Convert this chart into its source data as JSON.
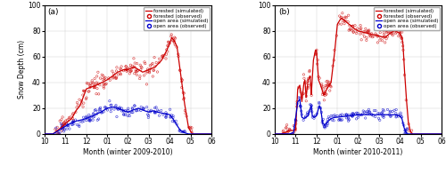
{
  "panel_a": {
    "title": "(a)",
    "xlabel": "Month (winter 2009-2010)",
    "ylabel": "Snow Depth (cm)",
    "xlim": [
      10,
      18
    ],
    "ylim": [
      0,
      100
    ],
    "yticks": [
      0,
      20,
      40,
      60,
      80,
      100
    ],
    "xticks": [
      10,
      11,
      12,
      13,
      14,
      15,
      16,
      17,
      18
    ],
    "xticklabels": [
      "10",
      "11",
      "12",
      "01",
      "02",
      "03",
      "04",
      "05",
      "06"
    ]
  },
  "panel_b": {
    "title": "(b)",
    "xlabel": "Month (winter 2010-2011)",
    "ylabel": "Snow Depth (cm)",
    "xlim": [
      10,
      18
    ],
    "ylim": [
      0,
      100
    ],
    "yticks": [
      0,
      20,
      40,
      60,
      80,
      100
    ],
    "xticks": [
      10,
      11,
      12,
      13,
      14,
      15,
      16,
      17,
      18
    ],
    "xticklabels": [
      "10",
      "11",
      "12",
      "01",
      "02",
      "03",
      "04",
      "05",
      "06"
    ]
  },
  "colors": {
    "forested_sim": "#cc0000",
    "open_sim": "#0000cc"
  },
  "legend_labels": [
    "forested (simulated)",
    "forested (observed)",
    "open area (simulated)",
    "open area (observed)"
  ],
  "figsize": [
    5.0,
    1.96
  ],
  "dpi": 100
}
